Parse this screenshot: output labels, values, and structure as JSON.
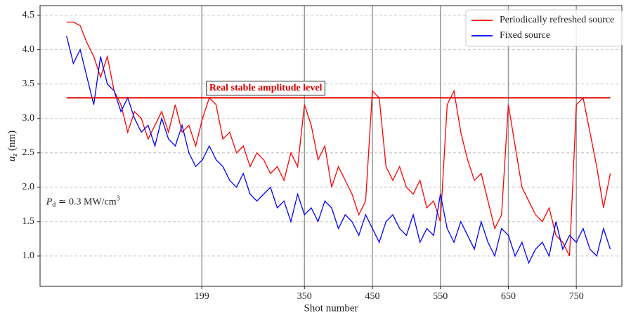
{
  "chart_data": {
    "type": "line",
    "xlabel": "Shot number",
    "ylabel": [
      "u",
      "z",
      " (nm)"
    ],
    "x": [
      0,
      10,
      20,
      30,
      40,
      50,
      60,
      70,
      80,
      90,
      100,
      110,
      120,
      130,
      140,
      150,
      160,
      170,
      180,
      190,
      200,
      210,
      220,
      230,
      240,
      250,
      260,
      270,
      280,
      290,
      300,
      310,
      320,
      330,
      340,
      350,
      360,
      370,
      380,
      390,
      400,
      410,
      420,
      430,
      440,
      450,
      460,
      470,
      480,
      490,
      500,
      510,
      520,
      530,
      540,
      550,
      560,
      570,
      580,
      590,
      600,
      610,
      620,
      630,
      640,
      650,
      660,
      670,
      680,
      690,
      700,
      710,
      720,
      730,
      740,
      750,
      760,
      770,
      780,
      790,
      800
    ],
    "series": [
      {
        "name": "Periodically refreshed source",
        "color": "#ff0000",
        "values": [
          4.4,
          4.4,
          4.35,
          4.1,
          3.9,
          3.6,
          3.9,
          3.4,
          3.2,
          2.8,
          3.1,
          3.0,
          2.7,
          2.9,
          3.1,
          2.8,
          3.2,
          2.8,
          2.9,
          2.6,
          3.0,
          3.3,
          3.2,
          2.7,
          2.8,
          2.5,
          2.6,
          2.3,
          2.5,
          2.4,
          2.2,
          2.3,
          2.1,
          2.5,
          2.3,
          3.2,
          2.9,
          2.4,
          2.6,
          2.0,
          2.3,
          2.1,
          1.9,
          1.6,
          1.8,
          3.4,
          3.3,
          2.3,
          2.1,
          2.3,
          2.0,
          1.9,
          2.1,
          1.7,
          1.8,
          1.5,
          3.2,
          3.4,
          2.8,
          2.4,
          2.1,
          2.2,
          1.8,
          1.4,
          1.6,
          3.2,
          2.6,
          2.0,
          1.8,
          1.6,
          1.5,
          1.7,
          1.3,
          1.2,
          1.0,
          3.2,
          3.3,
          2.8,
          2.3,
          1.7,
          2.2
        ]
      },
      {
        "name": "Fixed source",
        "color": "#0000ff",
        "values": [
          4.2,
          3.8,
          4.0,
          3.6,
          3.2,
          3.9,
          3.5,
          3.4,
          3.1,
          3.3,
          3.0,
          2.8,
          2.9,
          2.6,
          3.0,
          2.7,
          2.6,
          2.9,
          2.5,
          2.3,
          2.4,
          2.6,
          2.4,
          2.3,
          2.1,
          2.0,
          2.2,
          1.9,
          1.8,
          1.9,
          2.0,
          1.7,
          1.8,
          1.5,
          1.9,
          1.6,
          1.7,
          1.5,
          1.8,
          1.7,
          1.4,
          1.6,
          1.5,
          1.3,
          1.6,
          1.4,
          1.2,
          1.5,
          1.6,
          1.4,
          1.3,
          1.6,
          1.2,
          1.4,
          1.3,
          1.9,
          1.4,
          1.2,
          1.5,
          1.3,
          1.1,
          1.5,
          1.2,
          1.0,
          1.4,
          1.3,
          1.0,
          1.2,
          0.9,
          1.1,
          1.2,
          1.0,
          1.5,
          1.1,
          1.3,
          1.2,
          1.4,
          1.1,
          1.0,
          1.4,
          1.1
        ]
      }
    ],
    "reference_line": {
      "value": 3.3,
      "xrange": [
        0,
        800
      ],
      "color": "#dd0000",
      "label": "Real stable amplitude level",
      "label_x": 210,
      "label_y": 3.44
    },
    "note": {
      "pieces": [
        "P",
        "d",
        " ≃ 0.3 MW/cm",
        "3"
      ],
      "x": -30,
      "y": 1.78
    },
    "xlim": [
      -39,
      817
    ],
    "ylim": [
      0.56,
      4.64
    ],
    "xticks": [
      199,
      350,
      450,
      550,
      650,
      750
    ],
    "yticks": [
      {
        "value": 1.0,
        "label": "1.0"
      },
      1.5,
      {
        "value": 2.0,
        "label": "2.0"
      },
      2.5,
      {
        "value": 3.0,
        "label": "3.0"
      },
      3.5,
      {
        "value": 4.0,
        "label": "4.0"
      },
      4.5
    ],
    "grid": true,
    "legend": "upper right"
  }
}
